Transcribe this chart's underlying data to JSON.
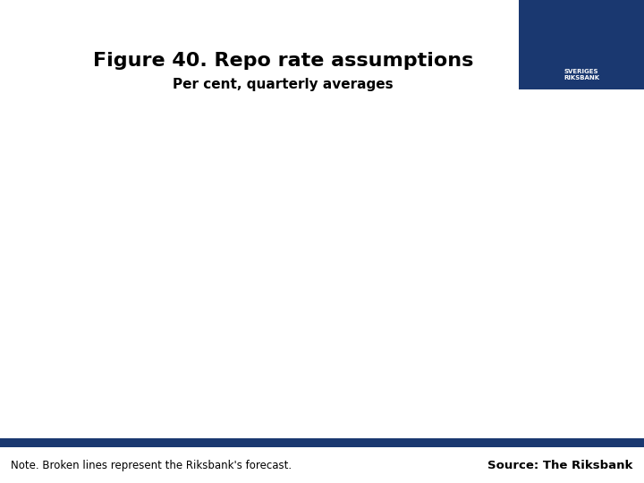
{
  "title": "Figure 40. Repo rate assumptions",
  "subtitle": "Per cent, quarterly averages",
  "note_text": "Note. Broken lines represent the Riksbank's forecast.",
  "source_text": "Source: The Riksbank",
  "background_color": "#ffffff",
  "header_bar_color": "#1a3870",
  "footer_bar_color": "#1a3870",
  "title_fontsize": 16,
  "subtitle_fontsize": 11,
  "note_fontsize": 8.5,
  "source_fontsize": 9.5,
  "title_color": "#000000",
  "subtitle_color": "#000000",
  "note_color": "#000000",
  "source_color": "#000000"
}
